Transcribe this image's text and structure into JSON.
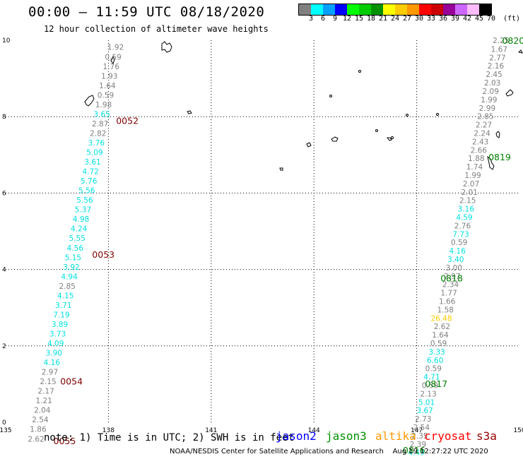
{
  "header": {
    "title": "00:00 – 11:59 UTC 08/18/2020",
    "subtitle": "12 hour collection of altimeter wave heights"
  },
  "colorbar": {
    "unit_label": "(ft)",
    "ticks": [
      "3",
      "6",
      "9",
      "12",
      "15",
      "18",
      "21",
      "24",
      "27",
      "30",
      "33",
      "36",
      "39",
      "42",
      "45",
      "70"
    ],
    "colors": [
      "#808080",
      "#00ffff",
      "#00a0ff",
      "#0000ff",
      "#00ff00",
      "#00cc00",
      "#009000",
      "#ffff00",
      "#ffcc00",
      "#ff9900",
      "#ff0000",
      "#cc0000",
      "#990099",
      "#cc66ff",
      "#ffbbff",
      "#000000"
    ]
  },
  "axes": {
    "x_ticks": [
      "135",
      "138",
      "141",
      "144",
      "147",
      "150"
    ],
    "y_ticks": [
      "0",
      "2",
      "4",
      "6",
      "8",
      "10"
    ]
  },
  "track_colors": {
    "gray": "#808080",
    "cyan": "#00e0e0",
    "orange": "#ffcc00",
    "time_jason2": "#800000",
    "time_jason3": "#008000"
  },
  "tracks": [
    {
      "name": "track-west",
      "points": [
        {
          "lon": 138.45,
          "lat": 9.82,
          "v": "1.92",
          "c": "gray"
        },
        {
          "lon": 138.38,
          "lat": 9.57,
          "v": "0.59",
          "c": "gray"
        },
        {
          "lon": 138.32,
          "lat": 9.32,
          "v": "1.76",
          "c": "gray"
        },
        {
          "lon": 138.27,
          "lat": 9.07,
          "v": "1.93",
          "c": "gray"
        },
        {
          "lon": 138.21,
          "lat": 8.82,
          "v": "1.64",
          "c": "gray"
        },
        {
          "lon": 138.16,
          "lat": 8.57,
          "v": "0.59",
          "c": "gray"
        },
        {
          "lon": 138.1,
          "lat": 8.32,
          "v": "1.98",
          "c": "gray"
        },
        {
          "lon": 138.05,
          "lat": 8.07,
          "v": "3.65",
          "c": "cyan"
        },
        {
          "lon": 138.0,
          "lat": 7.82,
          "v": "2.87",
          "c": "gray"
        },
        {
          "lon": 137.94,
          "lat": 7.57,
          "v": "2.82",
          "c": "gray"
        },
        {
          "lon": 137.89,
          "lat": 7.32,
          "v": "3.76",
          "c": "cyan"
        },
        {
          "lon": 137.84,
          "lat": 7.07,
          "v": "5.09",
          "c": "cyan"
        },
        {
          "lon": 137.78,
          "lat": 6.82,
          "v": "3.61",
          "c": "cyan"
        },
        {
          "lon": 137.72,
          "lat": 6.57,
          "v": "4.72",
          "c": "cyan"
        },
        {
          "lon": 137.67,
          "lat": 6.32,
          "v": "5.76",
          "c": "cyan"
        },
        {
          "lon": 137.61,
          "lat": 6.07,
          "v": "5.56",
          "c": "cyan"
        },
        {
          "lon": 137.55,
          "lat": 5.82,
          "v": "5.56",
          "c": "cyan"
        },
        {
          "lon": 137.5,
          "lat": 5.57,
          "v": "5.37",
          "c": "cyan"
        },
        {
          "lon": 137.44,
          "lat": 5.32,
          "v": "4.98",
          "c": "cyan"
        },
        {
          "lon": 137.38,
          "lat": 5.07,
          "v": "4.24",
          "c": "cyan"
        },
        {
          "lon": 137.33,
          "lat": 4.82,
          "v": "5.55",
          "c": "cyan"
        },
        {
          "lon": 137.27,
          "lat": 4.57,
          "v": "4.56",
          "c": "cyan"
        },
        {
          "lon": 137.21,
          "lat": 4.32,
          "v": "5.15",
          "c": "cyan"
        },
        {
          "lon": 137.16,
          "lat": 4.07,
          "v": "3.92",
          "c": "cyan"
        },
        {
          "lon": 137.1,
          "lat": 3.82,
          "v": "4.94",
          "c": "cyan"
        },
        {
          "lon": 137.04,
          "lat": 3.57,
          "v": "2.85",
          "c": "gray"
        },
        {
          "lon": 136.99,
          "lat": 3.32,
          "v": "4.15",
          "c": "cyan"
        },
        {
          "lon": 136.93,
          "lat": 3.07,
          "v": "3.71",
          "c": "cyan"
        },
        {
          "lon": 136.87,
          "lat": 2.82,
          "v": "7.19",
          "c": "cyan"
        },
        {
          "lon": 136.82,
          "lat": 2.57,
          "v": "3.89",
          "c": "cyan"
        },
        {
          "lon": 136.76,
          "lat": 2.32,
          "v": "3.73",
          "c": "cyan"
        },
        {
          "lon": 136.7,
          "lat": 2.07,
          "v": "4.09",
          "c": "cyan"
        },
        {
          "lon": 136.65,
          "lat": 1.82,
          "v": "3.90",
          "c": "cyan"
        },
        {
          "lon": 136.59,
          "lat": 1.57,
          "v": "4.16",
          "c": "cyan"
        },
        {
          "lon": 136.53,
          "lat": 1.32,
          "v": "2.97",
          "c": "gray"
        },
        {
          "lon": 136.48,
          "lat": 1.07,
          "v": "2.15",
          "c": "gray"
        },
        {
          "lon": 136.42,
          "lat": 0.82,
          "v": "2.17",
          "c": "gray"
        },
        {
          "lon": 136.36,
          "lat": 0.57,
          "v": "1.21",
          "c": "gray"
        },
        {
          "lon": 136.31,
          "lat": 0.32,
          "v": "2.04",
          "c": "gray"
        },
        {
          "lon": 136.25,
          "lat": 0.07,
          "v": "2.54",
          "c": "gray"
        },
        {
          "lon": 136.19,
          "lat": -0.18,
          "v": "1.86",
          "c": "gray"
        },
        {
          "lon": 136.13,
          "lat": -0.43,
          "v": "2.62",
          "c": "gray"
        }
      ],
      "times": [
        {
          "lon": 138.88,
          "lat": 7.9,
          "t": "0052"
        },
        {
          "lon": 138.18,
          "lat": 4.4,
          "t": "0053"
        },
        {
          "lon": 137.25,
          "lat": 1.08,
          "t": "0054"
        },
        {
          "lon": 137.05,
          "lat": -0.48,
          "t": "0055"
        }
      ],
      "time_color": "time_jason2"
    },
    {
      "name": "track-east",
      "points": [
        {
          "lon": 149.7,
          "lat": 10.0,
          "v": "2.25",
          "c": "gray"
        },
        {
          "lon": 149.65,
          "lat": 9.77,
          "v": "1.67",
          "c": "gray"
        },
        {
          "lon": 149.6,
          "lat": 9.55,
          "v": "2.77",
          "c": "gray"
        },
        {
          "lon": 149.55,
          "lat": 9.33,
          "v": "2.16",
          "c": "gray"
        },
        {
          "lon": 149.5,
          "lat": 9.11,
          "v": "2.45",
          "c": "gray"
        },
        {
          "lon": 149.45,
          "lat": 8.89,
          "v": "2.03",
          "c": "gray"
        },
        {
          "lon": 149.4,
          "lat": 8.67,
          "v": "2.09",
          "c": "gray"
        },
        {
          "lon": 149.35,
          "lat": 8.45,
          "v": "1.99",
          "c": "gray"
        },
        {
          "lon": 149.3,
          "lat": 8.23,
          "v": "2.99",
          "c": "gray"
        },
        {
          "lon": 149.25,
          "lat": 8.01,
          "v": "2.85",
          "c": "gray"
        },
        {
          "lon": 149.2,
          "lat": 7.79,
          "v": "2.27",
          "c": "gray"
        },
        {
          "lon": 149.15,
          "lat": 7.57,
          "v": "2.24",
          "c": "gray"
        },
        {
          "lon": 149.1,
          "lat": 7.35,
          "v": "2.43",
          "c": "gray"
        },
        {
          "lon": 149.05,
          "lat": 7.13,
          "v": "2.66",
          "c": "gray"
        },
        {
          "lon": 148.98,
          "lat": 6.91,
          "v": "1.88",
          "c": "gray"
        },
        {
          "lon": 148.93,
          "lat": 6.69,
          "v": "1.74",
          "c": "gray"
        },
        {
          "lon": 148.88,
          "lat": 6.47,
          "v": "1.99",
          "c": "gray"
        },
        {
          "lon": 148.83,
          "lat": 6.25,
          "v": "2.07",
          "c": "gray"
        },
        {
          "lon": 148.78,
          "lat": 6.03,
          "v": "2.01",
          "c": "gray"
        },
        {
          "lon": 148.73,
          "lat": 5.81,
          "v": "2.15",
          "c": "gray"
        },
        {
          "lon": 148.68,
          "lat": 5.59,
          "v": "3.16",
          "c": "cyan"
        },
        {
          "lon": 148.63,
          "lat": 5.37,
          "v": "4.59",
          "c": "cyan"
        },
        {
          "lon": 148.58,
          "lat": 5.15,
          "v": "2.76",
          "c": "gray"
        },
        {
          "lon": 148.53,
          "lat": 4.93,
          "v": "7.73",
          "c": "cyan"
        },
        {
          "lon": 148.48,
          "lat": 4.71,
          "v": "0.59",
          "c": "gray"
        },
        {
          "lon": 148.43,
          "lat": 4.49,
          "v": "4.16",
          "c": "cyan"
        },
        {
          "lon": 148.38,
          "lat": 4.27,
          "v": "3.40",
          "c": "cyan"
        },
        {
          "lon": 148.33,
          "lat": 4.05,
          "v": "3.00",
          "c": "gray"
        },
        {
          "lon": 148.28,
          "lat": 3.83,
          "v": "2.97",
          "c": "gray"
        },
        {
          "lon": 148.23,
          "lat": 3.61,
          "v": "2.34",
          "c": "gray"
        },
        {
          "lon": 148.18,
          "lat": 3.39,
          "v": "1.77",
          "c": "gray"
        },
        {
          "lon": 148.13,
          "lat": 3.17,
          "v": "1.66",
          "c": "gray"
        },
        {
          "lon": 148.08,
          "lat": 2.95,
          "v": "1.58",
          "c": "gray"
        },
        {
          "lon": 148.03,
          "lat": 2.73,
          "v": "26.48",
          "c": "orange"
        },
        {
          "lon": 147.98,
          "lat": 2.51,
          "v": "2.62",
          "c": "gray"
        },
        {
          "lon": 147.93,
          "lat": 2.29,
          "v": "1.64",
          "c": "gray"
        },
        {
          "lon": 147.88,
          "lat": 2.07,
          "v": "0.59",
          "c": "gray"
        },
        {
          "lon": 147.83,
          "lat": 1.85,
          "v": "3.33",
          "c": "cyan"
        },
        {
          "lon": 147.78,
          "lat": 1.63,
          "v": "6.60",
          "c": "cyan"
        },
        {
          "lon": 147.73,
          "lat": 1.41,
          "v": "0.59",
          "c": "gray"
        },
        {
          "lon": 147.68,
          "lat": 1.19,
          "v": "4.71",
          "c": "cyan"
        },
        {
          "lon": 147.63,
          "lat": 0.97,
          "v": "0.59",
          "c": "gray"
        },
        {
          "lon": 147.58,
          "lat": 0.75,
          "v": "2.13",
          "c": "gray"
        },
        {
          "lon": 147.53,
          "lat": 0.53,
          "v": "5.01",
          "c": "cyan"
        },
        {
          "lon": 147.48,
          "lat": 0.31,
          "v": "3.67",
          "c": "cyan"
        },
        {
          "lon": 147.43,
          "lat": 0.09,
          "v": "2.73",
          "c": "gray"
        },
        {
          "lon": 147.38,
          "lat": -0.13,
          "v": "2.54",
          "c": "gray"
        },
        {
          "lon": 147.33,
          "lat": -0.35,
          "v": "2.35",
          "c": "gray"
        },
        {
          "lon": 147.28,
          "lat": -0.57,
          "v": "2.39",
          "c": "gray"
        },
        {
          "lon": 147.23,
          "lat": -0.79,
          "v": "4.49",
          "c": "cyan"
        }
      ],
      "times": [
        {
          "lon": 150.15,
          "lat": 10.0,
          "t": "0820"
        },
        {
          "lon": 149.75,
          "lat": 6.95,
          "t": "0819"
        },
        {
          "lon": 148.35,
          "lat": 3.78,
          "t": "0818"
        },
        {
          "lon": 147.9,
          "lat": 1.02,
          "t": "0817"
        },
        {
          "lon": 147.25,
          "lat": -0.72,
          "t": "0816"
        }
      ],
      "time_color": "time_jason3"
    }
  ],
  "footer": {
    "note": "note: 1) Time is in UTC; 2) SWH is in feet",
    "satellites": [
      {
        "name": "jason2",
        "color": "#0000ff"
      },
      {
        "name": "jason3",
        "color": "#009000"
      },
      {
        "name": "altika",
        "color": "#ff9900"
      },
      {
        "name": "cryosat",
        "color": "#ff0000"
      },
      {
        "name": "s3a",
        "color": "#990000"
      }
    ],
    "credit": "NOAA/NESDIS Center for Satellite Applications and Research",
    "generated": "Aug 19 12:27:22 UTC 2020"
  }
}
